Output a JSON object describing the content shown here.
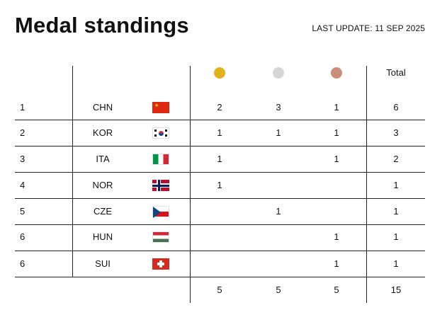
{
  "header": {
    "title": "Medal standings",
    "last_update": "LAST UPDATE: 11 SEP 2025"
  },
  "columns": {
    "gold_color": "#E3B21A",
    "silver_color": "#D6D6D6",
    "bronze_color": "#CC8E7A",
    "total": "Total"
  },
  "rows": [
    {
      "rank": "1",
      "country": "CHN",
      "flag": "china-flag",
      "gold": "2",
      "silver": "3",
      "bronze": "1",
      "total": "6"
    },
    {
      "rank": "2",
      "country": "KOR",
      "flag": "south-korea-flag",
      "gold": "1",
      "silver": "1",
      "bronze": "1",
      "total": "3"
    },
    {
      "rank": "3",
      "country": "ITA",
      "flag": "italy-flag",
      "gold": "1",
      "silver": "",
      "bronze": "1",
      "total": "2"
    },
    {
      "rank": "4",
      "country": "NOR",
      "flag": "norway-flag",
      "gold": "1",
      "silver": "",
      "bronze": "",
      "total": "1"
    },
    {
      "rank": "5",
      "country": "CZE",
      "flag": "czechia-flag",
      "gold": "",
      "silver": "1",
      "bronze": "",
      "total": "1"
    },
    {
      "rank": "6",
      "country": "HUN",
      "flag": "hungary-flag",
      "gold": "",
      "silver": "",
      "bronze": "1",
      "total": "1"
    },
    {
      "rank": "6",
      "country": "SUI",
      "flag": "switzerland-flag",
      "gold": "",
      "silver": "",
      "bronze": "1",
      "total": "1"
    }
  ],
  "totals": {
    "gold": "5",
    "silver": "5",
    "bronze": "5",
    "total": "15"
  }
}
